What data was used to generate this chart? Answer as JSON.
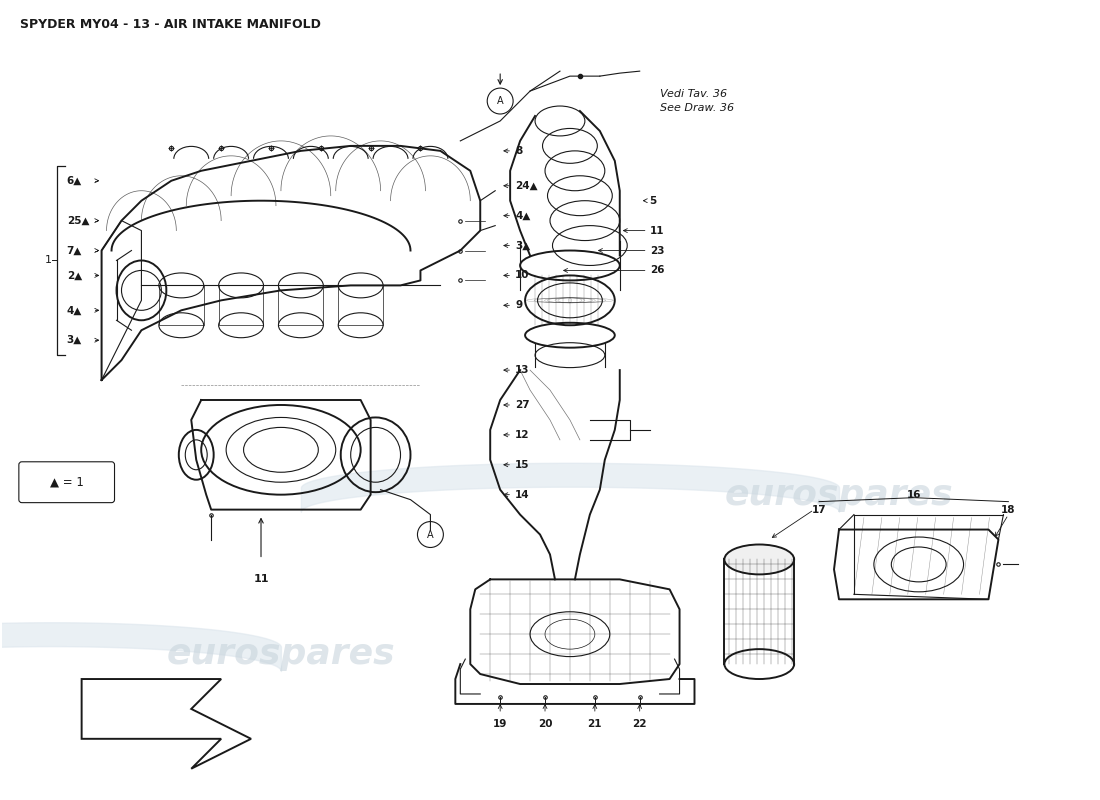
{
  "title": "SPYDER MY04 - 13 - AIR INTAKE MANIFOLD",
  "background_color": "#ffffff",
  "line_color": "#1a1a1a",
  "watermark_text": "eurospares",
  "watermark_color": "#c8d4dc",
  "note_text": "Vedi Tav. 36\nSee Draw. 36",
  "triangle_legend": "▲ = 1",
  "label_A_circle_manifold": "A",
  "label_A_circle_throttle": "A"
}
